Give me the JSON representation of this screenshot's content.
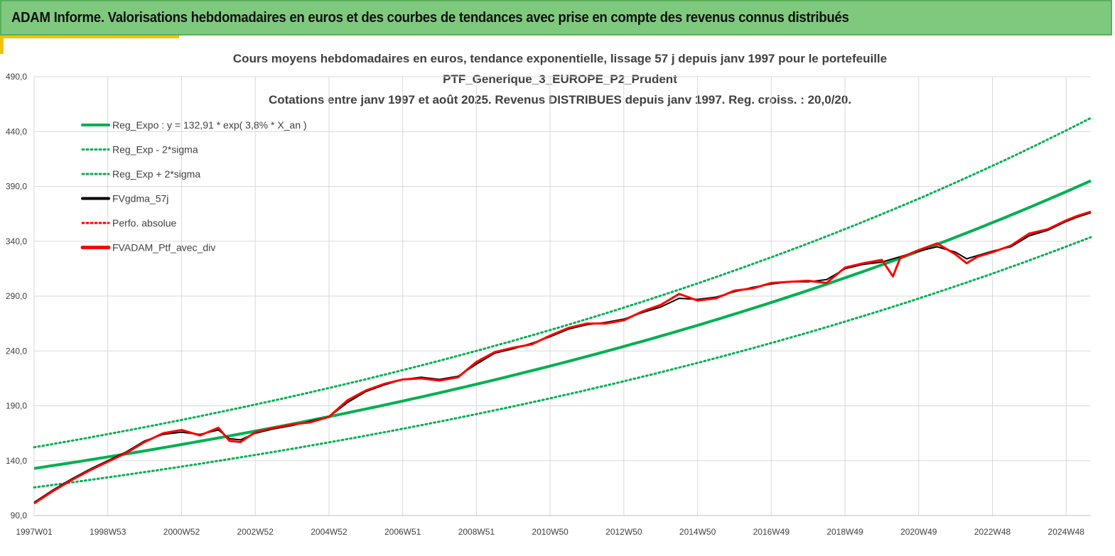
{
  "header": {
    "title": "ADAM Informe. Valorisations hebdomadaires en euros et des courbes de tendances avec prise en compte des revenus connus distribués"
  },
  "chart_data": {
    "type": "line",
    "title": "Cours moyens hebdomadaires  en euros, tendance exponentielle, lissage 57 j depuis janv 1997 pour le portefeuille",
    "subtitle": "PTF_Generique_3_EUROPE_P2_Prudent",
    "subtitle2": "Cotations  entre janv 1997 et août 2025. Revenus DISTRIBUES depuis janv 1997. Reg. croiss. : 20,0/20.",
    "xlabel": "",
    "ylabel": "",
    "ylim": [
      90,
      490
    ],
    "yticks": [
      90,
      140,
      190,
      240,
      290,
      340,
      390,
      440,
      490
    ],
    "ytick_labels": [
      "90,0",
      "140,0",
      "190,0",
      "240,0",
      "290,0",
      "340,0",
      "390,0",
      "440,0",
      "490,0"
    ],
    "xlim": [
      1997.0,
      2025.67
    ],
    "xtick_labels": [
      "1997W01",
      "1998W53",
      "2000W52",
      "2002W52",
      "2004W52",
      "2006W51",
      "2008W51",
      "2010W50",
      "2012W50",
      "2014W50",
      "2016W49",
      "2018W49",
      "2020W49",
      "2022W48",
      "2024W48"
    ],
    "xtick_years": [
      1997.0,
      1999.0,
      2001.0,
      2003.0,
      2005.0,
      2007.0,
      2009.0,
      2011.0,
      2013.0,
      2015.0,
      2017.0,
      2019.0,
      2021.0,
      2023.0,
      2025.0
    ],
    "grid": true,
    "legend_position": "top-left",
    "regression": {
      "a": 132.91,
      "rate": 0.038,
      "lower_factor": 0.87,
      "upper_factor": 1.145
    },
    "series": [
      {
        "name": "Reg_Expo : y = 132,91 * exp( 3,8% *  X_an )",
        "color": "#00b050",
        "style": "solid"
      },
      {
        "name": "Reg_Exp - 2*sigma",
        "color": "#00b050",
        "style": "dotted"
      },
      {
        "name": "Reg_Exp + 2*sigma",
        "color": "#00b050",
        "style": "dotted"
      },
      {
        "name": "FVgdma_57j",
        "color": "#000000",
        "style": "solid",
        "x": [
          1997.0,
          1997.5,
          1998.0,
          1998.5,
          1999.0,
          1999.5,
          2000.0,
          2000.5,
          2001.0,
          2001.5,
          2002.0,
          2002.3,
          2002.6,
          2003.0,
          2003.5,
          2004.0,
          2004.5,
          2005.0,
          2005.5,
          2006.0,
          2006.5,
          2007.0,
          2007.5,
          2008.0,
          2008.5,
          2009.0,
          2009.5,
          2010.0,
          2010.5,
          2011.0,
          2011.5,
          2012.0,
          2012.5,
          2013.0,
          2013.5,
          2014.0,
          2014.5,
          2015.0,
          2015.5,
          2016.0,
          2016.5,
          2017.0,
          2017.5,
          2018.0,
          2018.5,
          2019.0,
          2019.5,
          2020.0,
          2020.5,
          2021.0,
          2021.5,
          2022.0,
          2022.3,
          2022.6,
          2023.0,
          2023.5,
          2024.0,
          2024.5,
          2025.0,
          2025.3,
          2025.67
        ],
        "values": [
          102,
          113,
          123,
          132,
          140,
          148,
          158,
          164,
          166,
          164,
          168,
          160,
          159,
          165,
          169,
          172,
          176,
          180,
          193,
          203,
          209,
          214,
          216,
          214,
          217,
          228,
          238,
          242,
          247,
          253,
          260,
          264,
          266,
          269,
          275,
          280,
          288,
          287,
          289,
          294,
          298,
          301,
          303,
          303,
          305,
          315,
          319,
          321,
          326,
          331,
          335,
          330,
          324,
          327,
          331,
          335,
          345,
          350,
          358,
          362,
          366
        ]
      },
      {
        "name": "Perfo. absolue",
        "color": "#ff0000",
        "style": "dotted"
      },
      {
        "name": "FVADAM_Ptf_avec_div",
        "color": "#ff0000",
        "style": "solid",
        "x": [
          1997.0,
          1997.5,
          1998.0,
          1998.5,
          1999.0,
          1999.5,
          2000.0,
          2000.5,
          2001.0,
          2001.5,
          2002.0,
          2002.3,
          2002.6,
          2003.0,
          2003.5,
          2004.0,
          2004.5,
          2005.0,
          2005.5,
          2006.0,
          2006.5,
          2007.0,
          2007.5,
          2008.0,
          2008.5,
          2009.0,
          2009.5,
          2010.0,
          2010.5,
          2011.0,
          2011.5,
          2012.0,
          2012.5,
          2013.0,
          2013.5,
          2014.0,
          2014.5,
          2015.0,
          2015.5,
          2016.0,
          2016.5,
          2017.0,
          2017.5,
          2018.0,
          2018.5,
          2019.0,
          2019.5,
          2020.0,
          2020.3,
          2020.5,
          2021.0,
          2021.5,
          2022.0,
          2022.3,
          2022.6,
          2023.0,
          2023.5,
          2024.0,
          2024.5,
          2025.0,
          2025.3,
          2025.67
        ],
        "values": [
          101,
          112,
          122,
          131,
          139,
          147,
          157,
          165,
          168,
          163,
          170,
          158,
          157,
          166,
          170,
          173,
          175,
          180,
          195,
          204,
          210,
          214,
          215,
          213,
          216,
          230,
          239,
          243,
          246,
          254,
          261,
          265,
          265,
          268,
          276,
          282,
          292,
          286,
          288,
          295,
          297,
          302,
          303,
          304,
          302,
          316,
          320,
          323,
          308,
          325,
          332,
          338,
          328,
          320,
          326,
          330,
          336,
          347,
          351,
          359,
          363,
          367
        ]
      }
    ]
  }
}
